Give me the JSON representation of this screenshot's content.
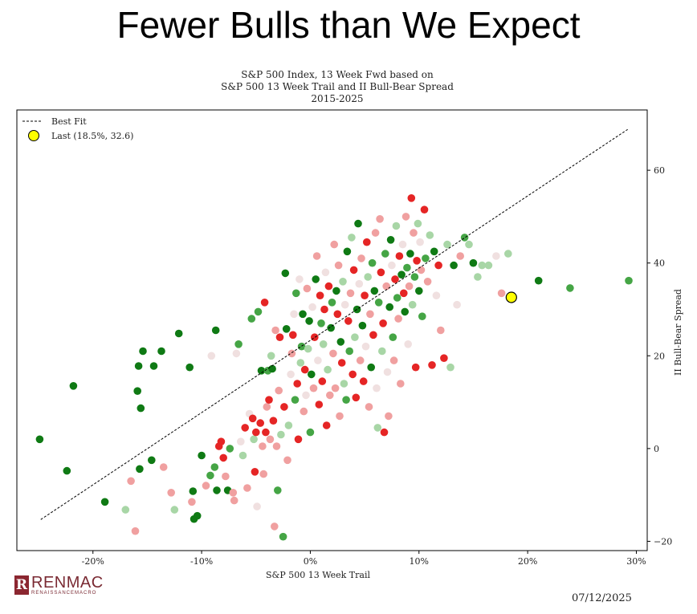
{
  "headline": "Fewer Bulls than We Expect",
  "chart_data": {
    "type": "scatter",
    "title_lines": [
      "S&P 500 Index, 13 Week Fwd based on",
      "S&P 500 13 Week Trail and II Bull-Bear Spread",
      "2015-2025"
    ],
    "xlabel": "S&P 500 13 Week Trail",
    "ylabel": "II Bull-Bear Spread",
    "xlim": [
      -27,
      31
    ],
    "ylim": [
      -22,
      73
    ],
    "xticks": [
      -20,
      -10,
      0,
      10,
      20,
      30
    ],
    "xtick_labels": [
      "-20%",
      "-10%",
      "0%",
      "10%",
      "20%",
      "30%"
    ],
    "yticks": [
      -20,
      0,
      20,
      40,
      60
    ],
    "ytick_labels": [
      "−20",
      "0",
      "20",
      "40",
      "60"
    ],
    "y_axis_side": "right",
    "grid": false,
    "legend_position": "top-left",
    "legend": {
      "best_fit_label": "Best Fit",
      "last_label": "Last (18.5%, 32.6)"
    },
    "best_fit": {
      "x": [
        -24.8,
        29.2
      ],
      "y": [
        -15.3,
        68.8
      ]
    },
    "last_point": {
      "x": 18.5,
      "y": 32.6
    },
    "colors": {
      "dark_green": "#0f7a14",
      "mid_green": "#45a545",
      "light_green": "#a8d6a6",
      "pale": "#f0e0e0",
      "light_red": "#f0a0a0",
      "red": "#e52525",
      "last_fill": "#ffff00"
    },
    "points": [
      {
        "x": -24.9,
        "y": 2.0,
        "c": "dark_green"
      },
      {
        "x": -22.4,
        "y": -4.8,
        "c": "dark_green"
      },
      {
        "x": -21.8,
        "y": 13.5,
        "c": "dark_green"
      },
      {
        "x": -18.9,
        "y": -11.5,
        "c": "dark_green"
      },
      {
        "x": -17.0,
        "y": -13.2,
        "c": "light_green"
      },
      {
        "x": -16.5,
        "y": -7.0,
        "c": "light_red"
      },
      {
        "x": -16.1,
        "y": -17.8,
        "c": "light_red"
      },
      {
        "x": -15.9,
        "y": 12.4,
        "c": "dark_green"
      },
      {
        "x": -15.8,
        "y": 17.8,
        "c": "dark_green"
      },
      {
        "x": -15.7,
        "y": -4.4,
        "c": "dark_green"
      },
      {
        "x": -15.6,
        "y": 8.7,
        "c": "dark_green"
      },
      {
        "x": -15.4,
        "y": 21.0,
        "c": "dark_green"
      },
      {
        "x": -14.6,
        "y": -2.5,
        "c": "dark_green"
      },
      {
        "x": -14.4,
        "y": 17.8,
        "c": "dark_green"
      },
      {
        "x": -13.7,
        "y": 21.0,
        "c": "dark_green"
      },
      {
        "x": -13.5,
        "y": -4.0,
        "c": "light_red"
      },
      {
        "x": -12.8,
        "y": -9.5,
        "c": "light_red"
      },
      {
        "x": -12.5,
        "y": -13.2,
        "c": "light_green"
      },
      {
        "x": -12.1,
        "y": 24.8,
        "c": "dark_green"
      },
      {
        "x": -11.1,
        "y": 17.5,
        "c": "dark_green"
      },
      {
        "x": -10.9,
        "y": -11.5,
        "c": "light_red"
      },
      {
        "x": -10.8,
        "y": -9.2,
        "c": "dark_green"
      },
      {
        "x": -10.7,
        "y": -15.2,
        "c": "dark_green"
      },
      {
        "x": -10.4,
        "y": -14.5,
        "c": "dark_green"
      },
      {
        "x": -10.0,
        "y": -1.5,
        "c": "dark_green"
      },
      {
        "x": -9.6,
        "y": -8.0,
        "c": "light_red"
      },
      {
        "x": -9.2,
        "y": -5.8,
        "c": "mid_green"
      },
      {
        "x": -9.1,
        "y": 20.0,
        "c": "pale"
      },
      {
        "x": -8.8,
        "y": -4.0,
        "c": "mid_green"
      },
      {
        "x": -8.7,
        "y": 25.5,
        "c": "dark_green"
      },
      {
        "x": -8.6,
        "y": -9.0,
        "c": "dark_green"
      },
      {
        "x": -8.4,
        "y": 0.5,
        "c": "red"
      },
      {
        "x": -8.2,
        "y": 1.5,
        "c": "red"
      },
      {
        "x": -8.0,
        "y": -2.0,
        "c": "red"
      },
      {
        "x": -7.8,
        "y": -6.0,
        "c": "light_red"
      },
      {
        "x": -7.6,
        "y": -9.0,
        "c": "dark_green"
      },
      {
        "x": -7.4,
        "y": 0.0,
        "c": "mid_green"
      },
      {
        "x": -7.1,
        "y": -9.5,
        "c": "light_red"
      },
      {
        "x": -7.0,
        "y": -11.2,
        "c": "light_red"
      },
      {
        "x": -6.8,
        "y": 20.5,
        "c": "pale"
      },
      {
        "x": -6.6,
        "y": 22.5,
        "c": "mid_green"
      },
      {
        "x": -6.4,
        "y": 1.5,
        "c": "pale"
      },
      {
        "x": -6.2,
        "y": -1.5,
        "c": "light_green"
      },
      {
        "x": -6.0,
        "y": 4.5,
        "c": "red"
      },
      {
        "x": -5.8,
        "y": -8.5,
        "c": "light_red"
      },
      {
        "x": -5.6,
        "y": 7.5,
        "c": "pale"
      },
      {
        "x": -5.4,
        "y": 28.0,
        "c": "mid_green"
      },
      {
        "x": -5.3,
        "y": 6.5,
        "c": "red"
      },
      {
        "x": -5.2,
        "y": 2.0,
        "c": "light_green"
      },
      {
        "x": -5.1,
        "y": -5.0,
        "c": "red"
      },
      {
        "x": -5.0,
        "y": 3.5,
        "c": "red"
      },
      {
        "x": -4.9,
        "y": -12.5,
        "c": "pale"
      },
      {
        "x": -4.8,
        "y": 29.5,
        "c": "mid_green"
      },
      {
        "x": -4.6,
        "y": 5.5,
        "c": "red"
      },
      {
        "x": -4.5,
        "y": 16.8,
        "c": "dark_green"
      },
      {
        "x": -4.4,
        "y": 0.5,
        "c": "light_red"
      },
      {
        "x": -4.3,
        "y": -5.5,
        "c": "light_red"
      },
      {
        "x": -4.2,
        "y": 31.5,
        "c": "red"
      },
      {
        "x": -4.1,
        "y": 3.5,
        "c": "red"
      },
      {
        "x": -4.0,
        "y": 9.0,
        "c": "light_red"
      },
      {
        "x": -3.9,
        "y": 16.8,
        "c": "mid_green"
      },
      {
        "x": -3.8,
        "y": 10.5,
        "c": "red"
      },
      {
        "x": -3.7,
        "y": 2.0,
        "c": "light_red"
      },
      {
        "x": -3.6,
        "y": 20.0,
        "c": "light_green"
      },
      {
        "x": -3.5,
        "y": 17.2,
        "c": "dark_green"
      },
      {
        "x": -3.4,
        "y": 6.0,
        "c": "red"
      },
      {
        "x": -3.3,
        "y": -16.8,
        "c": "light_red"
      },
      {
        "x": -3.2,
        "y": 25.5,
        "c": "light_red"
      },
      {
        "x": -3.1,
        "y": 0.5,
        "c": "light_red"
      },
      {
        "x": -3.0,
        "y": -9.0,
        "c": "mid_green"
      },
      {
        "x": -2.9,
        "y": 12.5,
        "c": "light_red"
      },
      {
        "x": -2.8,
        "y": 24.0,
        "c": "red"
      },
      {
        "x": -2.7,
        "y": 3.0,
        "c": "light_green"
      },
      {
        "x": -2.5,
        "y": -19.0,
        "c": "mid_green"
      },
      {
        "x": -2.4,
        "y": 9.0,
        "c": "red"
      },
      {
        "x": -2.3,
        "y": 37.8,
        "c": "dark_green"
      },
      {
        "x": -2.2,
        "y": 25.8,
        "c": "dark_green"
      },
      {
        "x": -2.1,
        "y": -2.5,
        "c": "light_red"
      },
      {
        "x": -2.0,
        "y": 5.0,
        "c": "light_green"
      },
      {
        "x": -1.8,
        "y": 16.0,
        "c": "pale"
      },
      {
        "x": -1.7,
        "y": 20.5,
        "c": "light_red"
      },
      {
        "x": -1.6,
        "y": 24.5,
        "c": "red"
      },
      {
        "x": -1.5,
        "y": 29.0,
        "c": "pale"
      },
      {
        "x": -1.4,
        "y": 10.5,
        "c": "mid_green"
      },
      {
        "x": -1.3,
        "y": 33.5,
        "c": "mid_green"
      },
      {
        "x": -1.2,
        "y": 14.0,
        "c": "red"
      },
      {
        "x": -1.1,
        "y": 2.0,
        "c": "red"
      },
      {
        "x": -1.0,
        "y": 36.5,
        "c": "pale"
      },
      {
        "x": -0.9,
        "y": 18.5,
        "c": "light_green"
      },
      {
        "x": -0.8,
        "y": 22.0,
        "c": "mid_green"
      },
      {
        "x": -0.7,
        "y": 29.0,
        "c": "dark_green"
      },
      {
        "x": -0.6,
        "y": 8.0,
        "c": "light_red"
      },
      {
        "x": -0.5,
        "y": 17.0,
        "c": "red"
      },
      {
        "x": -0.4,
        "y": 11.5,
        "c": "pale"
      },
      {
        "x": -0.3,
        "y": 34.5,
        "c": "light_red"
      },
      {
        "x": -0.2,
        "y": 21.5,
        "c": "light_green"
      },
      {
        "x": -0.1,
        "y": 27.5,
        "c": "dark_green"
      },
      {
        "x": 0.0,
        "y": 3.5,
        "c": "mid_green"
      },
      {
        "x": 0.1,
        "y": 16.0,
        "c": "dark_green"
      },
      {
        "x": 0.2,
        "y": 30.5,
        "c": "pale"
      },
      {
        "x": 0.3,
        "y": 13.0,
        "c": "light_red"
      },
      {
        "x": 0.4,
        "y": 24.0,
        "c": "red"
      },
      {
        "x": 0.5,
        "y": 36.5,
        "c": "dark_green"
      },
      {
        "x": 0.6,
        "y": 41.5,
        "c": "light_red"
      },
      {
        "x": 0.7,
        "y": 19.0,
        "c": "pale"
      },
      {
        "x": 0.8,
        "y": 9.5,
        "c": "red"
      },
      {
        "x": 0.9,
        "y": 33.0,
        "c": "red"
      },
      {
        "x": 1.0,
        "y": 27.0,
        "c": "mid_green"
      },
      {
        "x": 1.1,
        "y": 14.5,
        "c": "red"
      },
      {
        "x": 1.2,
        "y": 22.5,
        "c": "light_green"
      },
      {
        "x": 1.3,
        "y": 30.0,
        "c": "red"
      },
      {
        "x": 1.4,
        "y": 38.0,
        "c": "pale"
      },
      {
        "x": 1.5,
        "y": 5.0,
        "c": "red"
      },
      {
        "x": 1.6,
        "y": 17.0,
        "c": "light_green"
      },
      {
        "x": 1.7,
        "y": 35.0,
        "c": "red"
      },
      {
        "x": 1.8,
        "y": 11.5,
        "c": "light_red"
      },
      {
        "x": 1.9,
        "y": 26.0,
        "c": "dark_green"
      },
      {
        "x": 2.0,
        "y": 31.5,
        "c": "mid_green"
      },
      {
        "x": 2.1,
        "y": 20.5,
        "c": "light_red"
      },
      {
        "x": 2.2,
        "y": 44.0,
        "c": "light_red"
      },
      {
        "x": 2.3,
        "y": 13.0,
        "c": "light_red"
      },
      {
        "x": 2.4,
        "y": 34.0,
        "c": "dark_green"
      },
      {
        "x": 2.5,
        "y": 29.0,
        "c": "red"
      },
      {
        "x": 2.6,
        "y": 39.5,
        "c": "light_red"
      },
      {
        "x": 2.7,
        "y": 7.0,
        "c": "light_red"
      },
      {
        "x": 2.8,
        "y": 23.0,
        "c": "dark_green"
      },
      {
        "x": 2.9,
        "y": 18.5,
        "c": "red"
      },
      {
        "x": 3.0,
        "y": 36.0,
        "c": "light_green"
      },
      {
        "x": 3.1,
        "y": 14.0,
        "c": "light_green"
      },
      {
        "x": 3.2,
        "y": 31.0,
        "c": "pale"
      },
      {
        "x": 3.3,
        "y": 10.5,
        "c": "mid_green"
      },
      {
        "x": 3.4,
        "y": 42.5,
        "c": "dark_green"
      },
      {
        "x": 3.5,
        "y": 27.5,
        "c": "red"
      },
      {
        "x": 3.6,
        "y": 21.0,
        "c": "mid_green"
      },
      {
        "x": 3.7,
        "y": 33.5,
        "c": "light_red"
      },
      {
        "x": 3.8,
        "y": 45.5,
        "c": "light_green"
      },
      {
        "x": 3.9,
        "y": 16.0,
        "c": "red"
      },
      {
        "x": 4.0,
        "y": 38.5,
        "c": "red"
      },
      {
        "x": 4.1,
        "y": 24.0,
        "c": "light_green"
      },
      {
        "x": 4.2,
        "y": 11.0,
        "c": "red"
      },
      {
        "x": 4.3,
        "y": 30.0,
        "c": "dark_green"
      },
      {
        "x": 4.4,
        "y": 48.5,
        "c": "dark_green"
      },
      {
        "x": 4.5,
        "y": 35.5,
        "c": "pale"
      },
      {
        "x": 4.6,
        "y": 19.0,
        "c": "light_red"
      },
      {
        "x": 4.7,
        "y": 41.0,
        "c": "light_red"
      },
      {
        "x": 4.8,
        "y": 26.5,
        "c": "dark_green"
      },
      {
        "x": 4.9,
        "y": 14.5,
        "c": "red"
      },
      {
        "x": 5.0,
        "y": 33.0,
        "c": "red"
      },
      {
        "x": 5.1,
        "y": 22.0,
        "c": "pale"
      },
      {
        "x": 5.2,
        "y": 44.5,
        "c": "red"
      },
      {
        "x": 5.3,
        "y": 37.0,
        "c": "light_green"
      },
      {
        "x": 5.4,
        "y": 9.0,
        "c": "light_red"
      },
      {
        "x": 5.5,
        "y": 29.0,
        "c": "light_red"
      },
      {
        "x": 5.6,
        "y": 17.5,
        "c": "dark_green"
      },
      {
        "x": 5.7,
        "y": 40.0,
        "c": "mid_green"
      },
      {
        "x": 5.8,
        "y": 24.5,
        "c": "red"
      },
      {
        "x": 5.9,
        "y": 34.0,
        "c": "dark_green"
      },
      {
        "x": 6.0,
        "y": 46.5,
        "c": "light_red"
      },
      {
        "x": 6.1,
        "y": 13.0,
        "c": "pale"
      },
      {
        "x": 6.2,
        "y": 4.5,
        "c": "light_green"
      },
      {
        "x": 6.3,
        "y": 31.5,
        "c": "mid_green"
      },
      {
        "x": 6.4,
        "y": 49.5,
        "c": "light_red"
      },
      {
        "x": 6.5,
        "y": 38.0,
        "c": "red"
      },
      {
        "x": 6.6,
        "y": 21.0,
        "c": "light_green"
      },
      {
        "x": 6.7,
        "y": 27.0,
        "c": "red"
      },
      {
        "x": 6.8,
        "y": 3.5,
        "c": "red"
      },
      {
        "x": 6.9,
        "y": 42.0,
        "c": "mid_green"
      },
      {
        "x": 7.0,
        "y": 35.0,
        "c": "light_red"
      },
      {
        "x": 7.1,
        "y": 16.5,
        "c": "pale"
      },
      {
        "x": 7.2,
        "y": 7.0,
        "c": "light_red"
      },
      {
        "x": 7.3,
        "y": 30.5,
        "c": "dark_green"
      },
      {
        "x": 7.4,
        "y": 45.0,
        "c": "dark_green"
      },
      {
        "x": 7.5,
        "y": 39.5,
        "c": "pale"
      },
      {
        "x": 7.6,
        "y": 24.0,
        "c": "mid_green"
      },
      {
        "x": 7.7,
        "y": 19.0,
        "c": "light_red"
      },
      {
        "x": 7.8,
        "y": 36.5,
        "c": "red"
      },
      {
        "x": 7.9,
        "y": 48.0,
        "c": "light_green"
      },
      {
        "x": 8.0,
        "y": 32.5,
        "c": "mid_green"
      },
      {
        "x": 8.1,
        "y": 28.0,
        "c": "light_red"
      },
      {
        "x": 8.2,
        "y": 41.5,
        "c": "red"
      },
      {
        "x": 8.3,
        "y": 14.0,
        "c": "light_red"
      },
      {
        "x": 8.4,
        "y": 37.5,
        "c": "dark_green"
      },
      {
        "x": 8.5,
        "y": 44.0,
        "c": "pale"
      },
      {
        "x": 8.6,
        "y": 33.5,
        "c": "red"
      },
      {
        "x": 8.7,
        "y": 29.5,
        "c": "dark_green"
      },
      {
        "x": 8.8,
        "y": 50.0,
        "c": "light_red"
      },
      {
        "x": 8.9,
        "y": 39.0,
        "c": "mid_green"
      },
      {
        "x": 9.0,
        "y": 22.5,
        "c": "pale"
      },
      {
        "x": 9.1,
        "y": 35.0,
        "c": "light_red"
      },
      {
        "x": 9.2,
        "y": 42.0,
        "c": "dark_green"
      },
      {
        "x": 9.3,
        "y": 54.0,
        "c": "red"
      },
      {
        "x": 9.4,
        "y": 31.0,
        "c": "light_green"
      },
      {
        "x": 9.5,
        "y": 46.5,
        "c": "light_red"
      },
      {
        "x": 9.6,
        "y": 37.0,
        "c": "mid_green"
      },
      {
        "x": 9.7,
        "y": 17.5,
        "c": "red"
      },
      {
        "x": 9.8,
        "y": 40.5,
        "c": "red"
      },
      {
        "x": 9.9,
        "y": 48.5,
        "c": "light_green"
      },
      {
        "x": 10.0,
        "y": 34.0,
        "c": "dark_green"
      },
      {
        "x": 10.1,
        "y": 44.5,
        "c": "pale"
      },
      {
        "x": 10.2,
        "y": 38.5,
        "c": "light_red"
      },
      {
        "x": 10.3,
        "y": 28.5,
        "c": "mid_green"
      },
      {
        "x": 10.5,
        "y": 51.5,
        "c": "red"
      },
      {
        "x": 10.6,
        "y": 41.0,
        "c": "mid_green"
      },
      {
        "x": 10.8,
        "y": 36.0,
        "c": "light_red"
      },
      {
        "x": 11.0,
        "y": 46.0,
        "c": "light_green"
      },
      {
        "x": 11.2,
        "y": 18.0,
        "c": "red"
      },
      {
        "x": 11.4,
        "y": 42.5,
        "c": "dark_green"
      },
      {
        "x": 11.6,
        "y": 33.0,
        "c": "pale"
      },
      {
        "x": 11.8,
        "y": 39.5,
        "c": "red"
      },
      {
        "x": 12.0,
        "y": 25.5,
        "c": "light_red"
      },
      {
        "x": 12.3,
        "y": 19.5,
        "c": "red"
      },
      {
        "x": 12.6,
        "y": 44.0,
        "c": "light_green"
      },
      {
        "x": 12.9,
        "y": 17.5,
        "c": "light_green"
      },
      {
        "x": 13.2,
        "y": 39.5,
        "c": "dark_green"
      },
      {
        "x": 13.5,
        "y": 31.0,
        "c": "pale"
      },
      {
        "x": 13.8,
        "y": 41.5,
        "c": "light_red"
      },
      {
        "x": 14.2,
        "y": 45.5,
        "c": "mid_green"
      },
      {
        "x": 14.6,
        "y": 44.0,
        "c": "light_green"
      },
      {
        "x": 15.0,
        "y": 40.0,
        "c": "dark_green"
      },
      {
        "x": 15.4,
        "y": 37.0,
        "c": "light_green"
      },
      {
        "x": 15.8,
        "y": 39.5,
        "c": "light_green"
      },
      {
        "x": 16.4,
        "y": 39.5,
        "c": "light_green"
      },
      {
        "x": 17.1,
        "y": 41.5,
        "c": "pale"
      },
      {
        "x": 17.6,
        "y": 33.5,
        "c": "light_red"
      },
      {
        "x": 18.2,
        "y": 42.0,
        "c": "light_green"
      },
      {
        "x": 21.0,
        "y": 36.2,
        "c": "dark_green"
      },
      {
        "x": 23.9,
        "y": 34.6,
        "c": "mid_green"
      },
      {
        "x": 29.3,
        "y": 36.2,
        "c": "mid_green"
      }
    ]
  },
  "footer": {
    "logo_main": "RENMAC",
    "logo_sub": "RENAISSANCEMACRO",
    "logo_mark": "R",
    "date": "07/12/2025"
  }
}
